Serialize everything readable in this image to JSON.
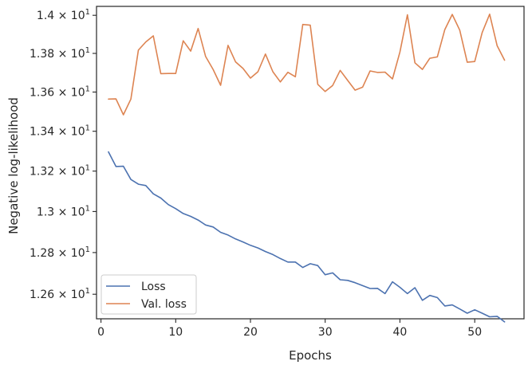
{
  "chart_data": {
    "type": "line",
    "title": "",
    "xlabel": "Epochs",
    "ylabel": "Negative log-likelihood",
    "xlim": [
      -0.6,
      56.6
    ],
    "ylim": [
      12.4835,
      14.0475
    ],
    "y_scale": "log",
    "grid": false,
    "legend_position": "lower-left",
    "x_ticks": [
      0,
      10,
      20,
      30,
      40,
      50
    ],
    "x_tick_labels": [
      "0",
      "10",
      "20",
      "30",
      "40",
      "50"
    ],
    "y_ticks": [
      12.6,
      12.8,
      13.0,
      13.2,
      13.4,
      13.6,
      13.8,
      14.0
    ],
    "y_tick_labels": [
      {
        "base": "1.26",
        "times": " × ",
        "ten": "10",
        "exp": "1"
      },
      {
        "base": "1.28",
        "times": " × ",
        "ten": "10",
        "exp": "1"
      },
      {
        "base": "1.3",
        "times": " × ",
        "ten": "10",
        "exp": "1"
      },
      {
        "base": "1.32",
        "times": " × ",
        "ten": "10",
        "exp": "1"
      },
      {
        "base": "1.34",
        "times": " × ",
        "ten": "10",
        "exp": "1"
      },
      {
        "base": "1.36",
        "times": " × ",
        "ten": "10",
        "exp": "1"
      },
      {
        "base": "1.38",
        "times": " × ",
        "ten": "10",
        "exp": "1"
      },
      {
        "base": "1.4",
        "times": " × ",
        "ten": "10",
        "exp": "1"
      }
    ],
    "x": [
      1,
      2,
      3,
      4,
      5,
      6,
      7,
      8,
      9,
      10,
      11,
      12,
      13,
      14,
      15,
      16,
      17,
      18,
      19,
      20,
      21,
      22,
      23,
      24,
      25,
      26,
      27,
      28,
      29,
      30,
      31,
      32,
      33,
      34,
      35,
      36,
      37,
      38,
      39,
      40,
      41,
      42,
      43,
      44,
      45,
      46,
      47,
      48,
      49,
      50,
      51,
      52,
      53,
      54
    ],
    "series": [
      {
        "name": "Loss",
        "color": "#4c72b0",
        "values": [
          13.296,
          13.223,
          13.224,
          13.158,
          13.135,
          13.128,
          13.087,
          13.066,
          13.034,
          13.014,
          12.99,
          12.976,
          12.958,
          12.934,
          12.924,
          12.898,
          12.885,
          12.866,
          12.851,
          12.835,
          12.822,
          12.805,
          12.79,
          12.771,
          12.754,
          12.754,
          12.728,
          12.746,
          12.737,
          12.693,
          12.702,
          12.669,
          12.666,
          12.655,
          12.641,
          12.627,
          12.628,
          12.603,
          12.659,
          12.633,
          12.603,
          12.631,
          12.571,
          12.594,
          12.584,
          12.544,
          12.549,
          12.53,
          12.51,
          12.526,
          12.51,
          12.493,
          12.495,
          12.469
        ]
      },
      {
        "name": "Val. loss",
        "color": "#dd8452",
        "values": [
          13.564,
          13.565,
          13.484,
          13.564,
          13.817,
          13.86,
          13.892,
          13.695,
          13.696,
          13.696,
          13.866,
          13.812,
          13.931,
          13.784,
          13.717,
          13.635,
          13.842,
          13.756,
          13.722,
          13.672,
          13.705,
          13.797,
          13.705,
          13.652,
          13.702,
          13.679,
          13.952,
          13.948,
          13.64,
          13.603,
          13.634,
          13.712,
          13.66,
          13.61,
          13.625,
          13.709,
          13.701,
          13.703,
          13.668,
          13.807,
          14.003,
          13.751,
          13.717,
          13.775,
          13.782,
          13.925,
          14.005,
          13.922,
          13.754,
          13.758,
          13.909,
          14.006,
          13.84,
          13.765
        ]
      }
    ]
  }
}
